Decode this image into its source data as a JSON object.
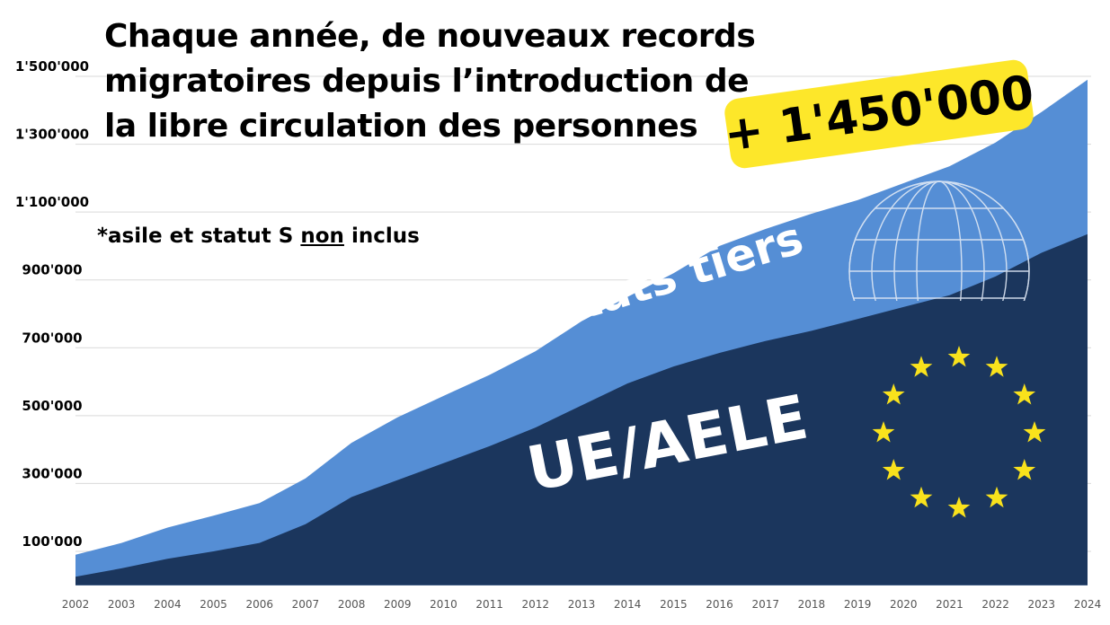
{
  "title_lines": [
    "Chaque année, de nouveaux records",
    "migratoires depuis l’introduction de",
    "la libre circulation des personnes"
  ],
  "badge": "+ 1'450'000",
  "note": {
    "prefix": "*asile et statut S ",
    "underlined": "non",
    "suffix": " inclus"
  },
  "colors": {
    "etats_tiers": "#558ed5",
    "ue_aele": "#1b365d",
    "badge_bg": "#fde72a",
    "grid": "#d9d9d9",
    "stars": "#f9e21c"
  },
  "icons": [
    "globe-wireframe-icon",
    "eu-stars-icon"
  ],
  "chart_data": {
    "type": "area",
    "stacked": true,
    "x": [
      "2002",
      "2003",
      "2004",
      "2005",
      "2006",
      "2007",
      "2008",
      "2009",
      "2010",
      "2011",
      "2012",
      "2013",
      "2014",
      "2015",
      "2016",
      "2017",
      "2018",
      "2019",
      "2020",
      "2021",
      "2022",
      "2023",
      "2024"
    ],
    "ylim": [
      0,
      1500000
    ],
    "yticks": [
      {
        "value": 100000,
        "label": "100'000"
      },
      {
        "value": 300000,
        "label": "300'000"
      },
      {
        "value": 500000,
        "label": "500'000"
      },
      {
        "value": 700000,
        "label": "700'000"
      },
      {
        "value": 900000,
        "label": "900'000"
      },
      {
        "value": 1100000,
        "label": "1'100'000"
      },
      {
        "value": 1300000,
        "label": "1'300'000"
      },
      {
        "value": 1500000,
        "label": "1'500'000"
      }
    ],
    "grid": true,
    "series": [
      {
        "name": "UE/AELE",
        "values": [
          25000,
          50000,
          78000,
          100000,
          125000,
          180000,
          260000,
          310000,
          360000,
          410000,
          465000,
          530000,
          595000,
          645000,
          685000,
          720000,
          750000,
          785000,
          820000,
          855000,
          910000,
          980000,
          1035000
        ]
      },
      {
        "name": "Etats tiers",
        "values": [
          65000,
          75000,
          92000,
          105000,
          117000,
          135000,
          160000,
          185000,
          198000,
          210000,
          225000,
          248000,
          255000,
          275000,
          315000,
          330000,
          345000,
          350000,
          365000,
          380000,
          395000,
          415000,
          455000
        ]
      }
    ]
  }
}
